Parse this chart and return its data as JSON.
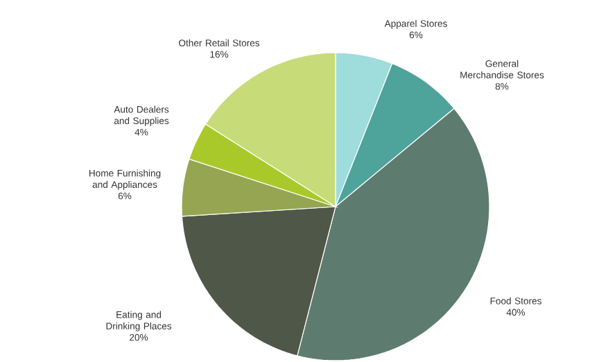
{
  "chart_data": {
    "type": "pie",
    "categories": [
      "Apparel Stores",
      "General Merchandise Stores",
      "Food Stores",
      "Eating and Drinking Places",
      "Home Furnishing and Appliances",
      "Auto Dealers and Supplies",
      "Other Retail Stores"
    ],
    "values": [
      6,
      8,
      40,
      20,
      6,
      4,
      16
    ],
    "value_labels": [
      "6%",
      "8%",
      "40%",
      "20%",
      "6%",
      "4%",
      "16%"
    ],
    "colors": [
      "#9fdcdc",
      "#4ea39b",
      "#5e7b70",
      "#4f5848",
      "#95a552",
      "#a9c92a",
      "#c7dc78"
    ]
  }
}
